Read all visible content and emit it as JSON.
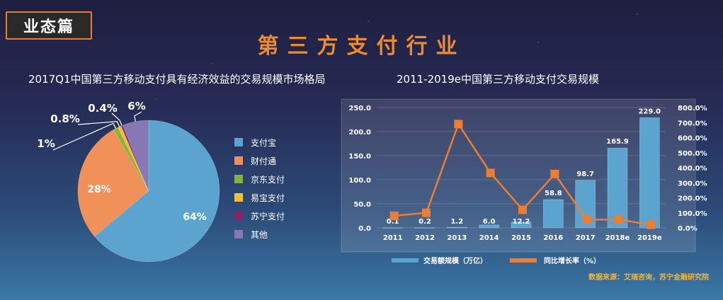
{
  "badge": "业态篇",
  "main_title": "第三方支付行业",
  "source_note": "数据来源：艾瑞咨询，苏宁金融研究院",
  "chart_data": [
    {
      "type": "pie",
      "title": "2017Q1中国第三方移动支付具有经济效益的交易规模市场格局",
      "slices": [
        {
          "label": "支付宝",
          "value": 64,
          "text": "64%",
          "color": "#5ba4cf"
        },
        {
          "label": "财付通",
          "value": 28,
          "text": "28%",
          "color": "#f0915a"
        },
        {
          "label": "京东支付",
          "value": 1,
          "text": "1%",
          "color": "#86b43a"
        },
        {
          "label": "易宝支付",
          "value": 0.8,
          "text": "0.8%",
          "color": "#f2c12e"
        },
        {
          "label": "苏宁支付",
          "value": 0.4,
          "text": "0.4%",
          "color": "#8a2366"
        },
        {
          "label": "其他",
          "value": 6,
          "text": "6%",
          "color": "#8777b5"
        }
      ],
      "legend_position": "right"
    },
    {
      "type": "bar",
      "title": "2011-2019e中国第三方移动支付交易规模",
      "categories": [
        "2011",
        "2012",
        "2013",
        "2014",
        "2015",
        "2016",
        "2017",
        "2018e",
        "2019e"
      ],
      "series": [
        {
          "name": "交易额规模（万亿）",
          "type": "bar",
          "values": [
            0.1,
            0.2,
            1.2,
            6.0,
            12.2,
            58.8,
            98.7,
            165.9,
            229.0
          ],
          "labels": [
            "0.1",
            "0.2",
            "1.2",
            "6.0",
            "12.2",
            "58.8",
            "98.7",
            "165.9",
            "229.0"
          ],
          "color": "#5ba4cf",
          "axis": "left"
        },
        {
          "name": "同比增长率（%）",
          "type": "line",
          "values": [
            80,
            100,
            690,
            365,
            120,
            358,
            55,
            55,
            20
          ],
          "color": "#ed7d31",
          "axis": "right"
        }
      ],
      "y_left": {
        "range": [
          0,
          250
        ],
        "ticks": [
          "0.0",
          "50.0",
          "100.0",
          "150.0",
          "200.0",
          "250.0"
        ]
      },
      "y_right": {
        "range": [
          0,
          800
        ],
        "ticks": [
          "0.0%",
          "100.0%",
          "200.0%",
          "300.0%",
          "400.0%",
          "500.0%",
          "600.0%",
          "700.0%",
          "800.0%"
        ]
      },
      "grid": true,
      "legend_position": "bottom"
    }
  ]
}
